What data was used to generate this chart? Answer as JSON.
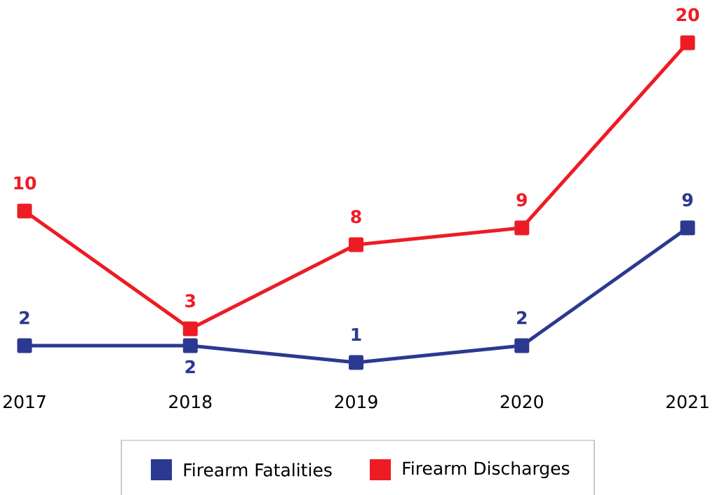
{
  "chart_data": {
    "type": "line",
    "categories": [
      "2017",
      "2018",
      "2019",
      "2020",
      "2021"
    ],
    "series": [
      {
        "name": "Firearm Fatalities",
        "color": "#2b3990",
        "values": [
          2,
          2,
          1,
          2,
          9
        ]
      },
      {
        "name": "Firearm Discharges",
        "color": "#ed1c24",
        "values": [
          10,
          3,
          8,
          9,
          20
        ]
      }
    ],
    "data_labels": true,
    "legend": "bottom",
    "marker": "square",
    "line_style": "solid"
  }
}
